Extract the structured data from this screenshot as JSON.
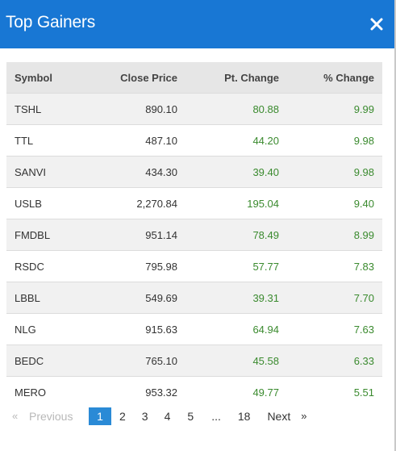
{
  "modal": {
    "title": "Top Gainers",
    "close_glyph": "×"
  },
  "table": {
    "headers": [
      "Symbol",
      "Close Price",
      "Pt. Change",
      "% Change"
    ],
    "rows": [
      [
        "TSHL",
        "890.10",
        "80.88",
        "9.99"
      ],
      [
        "TTL",
        "487.10",
        "44.20",
        "9.98"
      ],
      [
        "SANVI",
        "434.30",
        "39.40",
        "9.98"
      ],
      [
        "USLB",
        "2,270.84",
        "195.04",
        "9.40"
      ],
      [
        "FMDBL",
        "951.14",
        "78.49",
        "8.99"
      ],
      [
        "RSDC",
        "795.98",
        "57.77",
        "7.83"
      ],
      [
        "LBBL",
        "549.69",
        "39.31",
        "7.70"
      ],
      [
        "NLG",
        "915.63",
        "64.94",
        "7.63"
      ],
      [
        "BEDC",
        "765.10",
        "45.58",
        "6.33"
      ],
      [
        "MERO",
        "953.32",
        "49.77",
        "5.51"
      ]
    ]
  },
  "pagination": {
    "prev_arrow": "«",
    "previous": "Previous",
    "pages": [
      "1",
      "2",
      "3",
      "4",
      "5"
    ],
    "ellipsis": "...",
    "last": "18",
    "next": "Next",
    "next_arrow": "»",
    "current": "1"
  },
  "colors": {
    "header_bg": "#1877d4",
    "positive": "#3a8a2e",
    "active_page": "#2a8ad6"
  }
}
